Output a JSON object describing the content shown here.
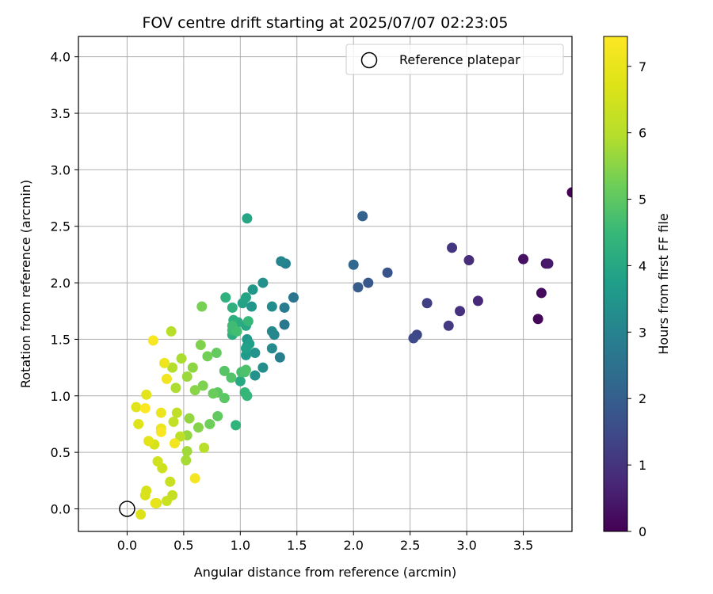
{
  "chart_data": {
    "type": "scatter",
    "title": "FOV centre drift starting at 2025/07/07 02:23:05",
    "xlabel": "Angular distance from reference (arcmin)",
    "ylabel": "Rotation from reference (arcmin)",
    "xlim": [
      -0.43,
      3.93
    ],
    "ylim": [
      -0.2,
      4.18
    ],
    "x_ticks": [
      0.0,
      0.5,
      1.0,
      1.5,
      2.0,
      2.5,
      3.0,
      3.5
    ],
    "x_tick_labels": [
      "0.0",
      "0.5",
      "1.0",
      "1.5",
      "2.0",
      "2.5",
      "3.0",
      "3.5"
    ],
    "y_ticks": [
      0.0,
      0.5,
      1.0,
      1.5,
      2.0,
      2.5,
      3.0,
      3.5,
      4.0
    ],
    "y_tick_labels": [
      "0.0",
      "0.5",
      "1.0",
      "1.5",
      "2.0",
      "2.5",
      "3.0",
      "3.5",
      "4.0"
    ],
    "grid": true,
    "legend": {
      "position": "top-right",
      "entries": [
        "Reference platepar"
      ]
    },
    "reference_point": {
      "x": 0.0,
      "y": 0.0
    },
    "colorbar": {
      "label": "Hours from first FF file",
      "range": [
        0,
        7.45
      ],
      "ticks": [
        0,
        1,
        2,
        3,
        4,
        5,
        6,
        7
      ],
      "tick_labels": [
        "0",
        "1",
        "2",
        "3",
        "4",
        "5",
        "6",
        "7"
      ],
      "colormap": "viridis"
    },
    "points": [
      [
        3.93,
        2.8,
        0.02
      ],
      [
        3.63,
        1.68,
        0.12
      ],
      [
        3.66,
        1.91,
        0.2
      ],
      [
        3.5,
        2.21,
        0.3
      ],
      [
        3.7,
        2.17,
        0.38
      ],
      [
        3.72,
        2.17,
        0.45
      ],
      [
        3.1,
        1.84,
        0.75
      ],
      [
        3.02,
        2.2,
        0.85
      ],
      [
        2.94,
        1.75,
        0.95
      ],
      [
        2.87,
        2.31,
        1.05
      ],
      [
        2.84,
        1.62,
        1.15
      ],
      [
        2.65,
        1.82,
        1.25
      ],
      [
        2.56,
        1.54,
        1.4
      ],
      [
        2.53,
        1.51,
        1.5
      ],
      [
        2.3,
        2.09,
        1.75
      ],
      [
        2.13,
        2.0,
        1.85
      ],
      [
        2.04,
        1.96,
        1.95
      ],
      [
        2.08,
        2.59,
        2.05
      ],
      [
        2.0,
        2.16,
        2.2
      ],
      [
        1.47,
        1.87,
        2.6
      ],
      [
        1.39,
        1.63,
        2.7
      ],
      [
        1.39,
        1.78,
        2.8
      ],
      [
        1.35,
        1.34,
        2.9
      ],
      [
        1.4,
        2.17,
        2.95
      ],
      [
        1.36,
        2.19,
        3.05
      ],
      [
        1.3,
        1.54,
        3.1
      ],
      [
        1.28,
        1.57,
        3.15
      ],
      [
        1.28,
        1.42,
        3.2
      ],
      [
        1.28,
        1.79,
        3.25
      ],
      [
        1.2,
        1.25,
        3.3
      ],
      [
        1.2,
        2.0,
        3.35
      ],
      [
        1.13,
        1.18,
        3.4
      ],
      [
        1.13,
        1.38,
        3.45
      ],
      [
        1.1,
        1.79,
        3.5
      ],
      [
        1.11,
        1.94,
        3.55
      ],
      [
        1.06,
        1.5,
        3.6
      ],
      [
        1.05,
        1.36,
        3.65
      ],
      [
        1.06,
        1.44,
        3.7
      ],
      [
        1.08,
        1.46,
        3.75
      ],
      [
        1.05,
        1.42,
        3.8
      ],
      [
        1.02,
        1.82,
        3.85
      ],
      [
        1.05,
        1.87,
        3.9
      ],
      [
        1.06,
        2.57,
        3.95
      ],
      [
        1.05,
        1.62,
        4.0
      ],
      [
        1.0,
        1.13,
        4.05
      ],
      [
        0.98,
        1.65,
        4.1
      ],
      [
        0.93,
        1.54,
        4.15
      ],
      [
        0.94,
        1.67,
        4.2
      ],
      [
        0.93,
        1.78,
        4.25
      ],
      [
        0.87,
        1.87,
        4.3
      ],
      [
        0.96,
        0.74,
        4.35
      ],
      [
        1.06,
        1.0,
        4.4
      ],
      [
        1.04,
        1.03,
        4.45
      ],
      [
        1.07,
        1.66,
        4.5
      ],
      [
        0.93,
        1.58,
        4.55
      ],
      [
        0.93,
        1.62,
        4.6
      ],
      [
        0.97,
        1.57,
        4.65
      ],
      [
        1.01,
        1.21,
        4.7
      ],
      [
        1.04,
        1.21,
        4.75
      ],
      [
        1.05,
        1.23,
        4.8
      ],
      [
        0.92,
        1.16,
        4.85
      ],
      [
        0.86,
        1.22,
        4.9
      ],
      [
        0.86,
        0.98,
        4.95
      ],
      [
        0.8,
        1.03,
        5.0
      ],
      [
        0.8,
        0.82,
        5.05
      ],
      [
        0.79,
        1.38,
        5.1
      ],
      [
        0.76,
        1.02,
        5.15
      ],
      [
        0.73,
        0.75,
        5.2
      ],
      [
        0.71,
        1.35,
        5.25
      ],
      [
        0.66,
        1.79,
        5.3
      ],
      [
        0.67,
        1.09,
        5.35
      ],
      [
        0.65,
        1.45,
        5.4
      ],
      [
        0.63,
        0.72,
        5.45
      ],
      [
        0.6,
        1.05,
        5.5
      ],
      [
        0.58,
        1.25,
        5.55
      ],
      [
        0.55,
        0.8,
        5.6
      ],
      [
        0.53,
        0.65,
        5.65
      ],
      [
        0.53,
        1.17,
        5.7
      ],
      [
        0.53,
        0.51,
        5.75
      ],
      [
        0.52,
        0.43,
        5.8
      ],
      [
        0.48,
        1.33,
        5.85
      ],
      [
        0.43,
        1.07,
        5.9
      ],
      [
        0.4,
        1.25,
        5.95
      ],
      [
        0.39,
        1.57,
        6.0
      ],
      [
        0.68,
        0.54,
        6.05
      ],
      [
        0.47,
        0.64,
        6.1
      ],
      [
        0.44,
        0.85,
        6.15
      ],
      [
        0.41,
        0.77,
        6.2
      ],
      [
        0.4,
        0.12,
        6.25
      ],
      [
        0.38,
        0.24,
        6.3
      ],
      [
        0.35,
        0.07,
        6.35
      ],
      [
        0.31,
        0.36,
        6.4
      ],
      [
        0.27,
        0.42,
        6.45
      ],
      [
        0.26,
        0.05,
        6.5
      ],
      [
        0.24,
        0.57,
        6.55
      ],
      [
        0.17,
        0.16,
        6.6
      ],
      [
        0.16,
        0.12,
        6.65
      ],
      [
        0.12,
        -0.05,
        6.7
      ],
      [
        0.1,
        0.75,
        6.75
      ],
      [
        0.08,
        0.9,
        6.8
      ],
      [
        0.17,
        1.01,
        6.85
      ],
      [
        0.19,
        0.6,
        6.9
      ],
      [
        0.25,
        0.05,
        6.95
      ],
      [
        0.3,
        0.71,
        7.0
      ],
      [
        0.3,
        0.85,
        7.05
      ],
      [
        0.33,
        1.29,
        7.1
      ],
      [
        0.35,
        1.15,
        7.15
      ],
      [
        0.42,
        0.58,
        7.2
      ],
      [
        0.6,
        0.27,
        7.25
      ],
      [
        0.23,
        1.49,
        7.3
      ],
      [
        0.3,
        0.68,
        7.35
      ],
      [
        0.16,
        0.89,
        7.4
      ]
    ]
  }
}
